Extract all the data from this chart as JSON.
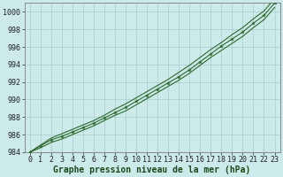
{
  "x_values": [
    0,
    1,
    2,
    3,
    4,
    5,
    6,
    7,
    8,
    9,
    10,
    11,
    12,
    13,
    14,
    15,
    16,
    17,
    18,
    19,
    20,
    21,
    22,
    23
  ],
  "y_main": [
    984.0,
    984.7,
    985.4,
    985.8,
    986.3,
    986.8,
    987.3,
    987.9,
    988.5,
    989.1,
    989.8,
    990.5,
    991.2,
    991.9,
    992.6,
    993.4,
    994.3,
    995.2,
    996.1,
    996.9,
    997.7,
    998.7,
    999.6,
    1001.0
  ],
  "y_upper": [
    984.0,
    984.8,
    985.6,
    986.1,
    986.6,
    987.1,
    987.6,
    988.2,
    988.9,
    989.5,
    990.2,
    990.9,
    991.6,
    992.3,
    993.1,
    993.9,
    994.8,
    995.7,
    996.5,
    997.4,
    998.2,
    999.2,
    1000.1,
    1001.5
  ],
  "y_lower": [
    984.0,
    984.5,
    985.1,
    985.5,
    986.0,
    986.5,
    987.0,
    987.6,
    988.2,
    988.7,
    989.4,
    990.1,
    990.8,
    991.5,
    992.2,
    993.0,
    993.9,
    994.8,
    995.6,
    996.4,
    997.2,
    998.2,
    999.1,
    1000.5
  ],
  "line_color": "#2d6a2d",
  "marker_color": "#2d6a2d",
  "bg_color": "#cceaea",
  "grid_color": "#aacccc",
  "axis_color": "#888888",
  "ylim": [
    984,
    1001
  ],
  "yticks": [
    984,
    986,
    988,
    990,
    992,
    994,
    996,
    998,
    1000
  ],
  "xlim": [
    -0.5,
    23.5
  ],
  "xticks": [
    0,
    1,
    2,
    3,
    4,
    5,
    6,
    7,
    8,
    9,
    10,
    11,
    12,
    13,
    14,
    15,
    16,
    17,
    18,
    19,
    20,
    21,
    22,
    23
  ],
  "xlabel": "Graphe pression niveau de la mer (hPa)",
  "tick_fontsize": 6,
  "label_fontsize": 7
}
